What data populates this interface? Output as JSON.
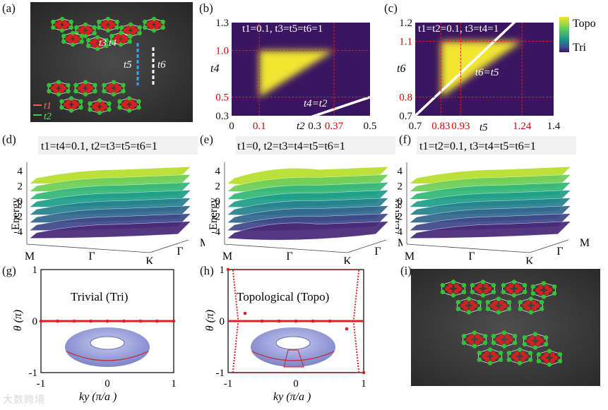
{
  "panels": {
    "a": "(a)",
    "b": "(b)",
    "c": "(c)",
    "d": "(d)",
    "e": "(e)",
    "f": "(f)",
    "g": "(g)",
    "h": "(h)",
    "i": "(i)"
  },
  "colorbar": {
    "top_label": "Topo",
    "bottom_label": "Tri"
  },
  "panel_a": {
    "hopping_labels": [
      "t3",
      "t4",
      "t5",
      "t6"
    ],
    "legend": [
      {
        "label": "t1",
        "color": "#ff5555"
      },
      {
        "label": "t2",
        "color": "#44cc44"
      }
    ]
  },
  "chart_data": [
    {
      "id": "b",
      "type": "heatmap",
      "title": "t1=0.1, t3=t5=t6=1",
      "xlabel": "t2",
      "ylabel": "t4",
      "xlim": [
        0,
        0.5
      ],
      "ylim": [
        0.3,
        1.3
      ],
      "x_ticks": [
        "0",
        "0.1",
        "0.3",
        "0.37",
        "0.5"
      ],
      "y_ticks": [
        "0.3",
        "0.5",
        "1.0",
        "1.3"
      ],
      "highlight_x": [
        0.1,
        0.37
      ],
      "highlight_y": [
        0.5,
        1.0
      ],
      "topo_region": [
        [
          0.1,
          1.0
        ],
        [
          0.37,
          1.0
        ],
        [
          0.1,
          0.5
        ]
      ],
      "line_label": "t4=t2"
    },
    {
      "id": "c",
      "type": "heatmap",
      "title": "t1=t2=0.1, t3=t4=1",
      "xlabel": "t5",
      "ylabel": "t6",
      "xlim": [
        0.7,
        1.4
      ],
      "ylim": [
        0.7,
        1.2
      ],
      "x_ticks": [
        "0.7",
        "0.83",
        "0.93",
        "1.24",
        "1.4"
      ],
      "y_ticks": [
        "0.7",
        "0.8",
        "1.1",
        "1.2"
      ],
      "highlight_x": [
        0.83,
        0.93,
        1.24
      ],
      "highlight_y": [
        0.8,
        1.1
      ],
      "topo_region": [
        [
          0.83,
          0.8
        ],
        [
          0.83,
          1.1
        ],
        [
          1.24,
          1.1
        ]
      ],
      "line_label": "t6=t5"
    },
    {
      "id": "d",
      "type": "line",
      "title": "t1=t4=0.1, t2=t3=t5=t6=1",
      "ylabel": "Energy",
      "ylim": [
        -4,
        4
      ],
      "y_ticks": [
        "4",
        "2",
        "0",
        "-2",
        "-4"
      ],
      "k_labels": [
        "M",
        "Γ",
        "K",
        "Γ",
        "M"
      ],
      "num_bands": 8
    },
    {
      "id": "e",
      "type": "line",
      "title": "t1=0, t2=t3=t4=t5=t6=1",
      "ylabel": "Energy",
      "ylim": [
        -4,
        4
      ],
      "y_ticks": [
        "4",
        "2",
        "0",
        "-2",
        "-4"
      ],
      "k_labels": [
        "M",
        "Γ",
        "K",
        "Γ",
        "M"
      ],
      "num_bands": 8
    },
    {
      "id": "f",
      "type": "line",
      "title": "t1=t2=0.1, t3=t4=t5=t6=1",
      "ylabel": "Energy",
      "ylim": [
        -4,
        4
      ],
      "y_ticks": [
        "4",
        "2",
        "0",
        "-2",
        "-4"
      ],
      "k_labels": [
        "M",
        "Γ",
        "K",
        "Γ",
        "M"
      ],
      "num_bands": 8
    },
    {
      "id": "g",
      "type": "scatter",
      "title": "Trivial (Tri)",
      "xlabel": "ky (π/a )",
      "ylabel": "θ (π)",
      "xlim": [
        -1,
        1
      ],
      "ylim": [
        -1,
        1
      ],
      "x_ticks": [
        "-1",
        "0",
        "1"
      ],
      "y_ticks": [
        "1",
        "0",
        "-1"
      ],
      "series": [
        {
          "name": "Wilson loop phase",
          "values": [
            0,
            0,
            0,
            0,
            0,
            0,
            0,
            0,
            0
          ]
        }
      ]
    },
    {
      "id": "h",
      "type": "scatter",
      "title": "Topological (Topo)",
      "xlabel": "ky (π/a )",
      "ylabel": "θ (π)",
      "xlim": [
        -1,
        1
      ],
      "ylim": [
        -1,
        1
      ],
      "x_ticks": [
        "-1",
        "0",
        "1"
      ],
      "y_ticks": [
        "1",
        "0",
        "-1"
      ],
      "series": [
        {
          "name": "Wilson loop phase",
          "values": [
            1,
            0.15,
            0,
            0,
            0,
            0,
            0,
            -0.15,
            -1
          ]
        }
      ]
    }
  ],
  "watermark": "大数跨境"
}
